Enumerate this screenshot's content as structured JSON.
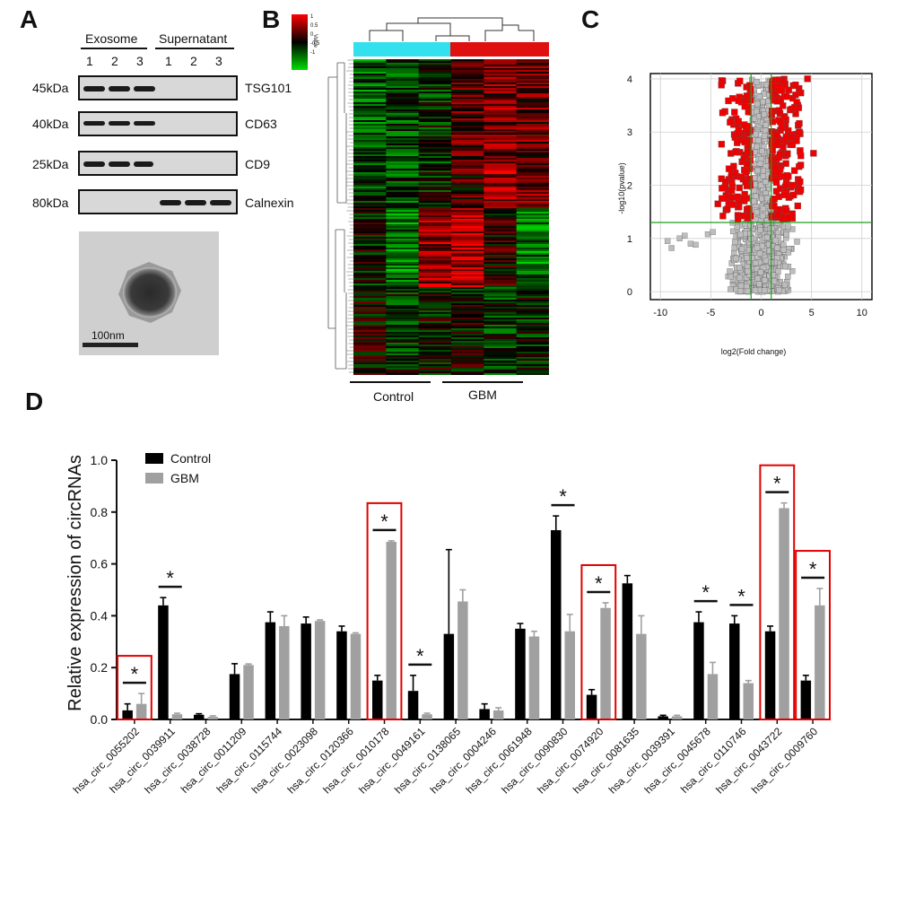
{
  "panels": {
    "a": "A",
    "b": "B",
    "c": "C",
    "d": "D"
  },
  "panel_a": {
    "groups": [
      "Exosome",
      "Supernatant"
    ],
    "lanes": [
      "1",
      "2",
      "3",
      "1",
      "2",
      "3"
    ],
    "blots": [
      {
        "mw": "45kDa",
        "protein": "TSG101",
        "bands": [
          1,
          1,
          1,
          0,
          0,
          0
        ]
      },
      {
        "mw": "40kDa",
        "protein": "CD63",
        "bands": [
          1,
          1,
          1,
          0,
          0,
          0
        ]
      },
      {
        "mw": "25kDa",
        "protein": "CD9",
        "bands": [
          1,
          1,
          1,
          0,
          0,
          0
        ]
      },
      {
        "mw": "80kDa",
        "protein": "Calnexin",
        "bands": [
          0,
          0,
          0,
          1,
          1,
          1
        ]
      }
    ],
    "scale_bar": "100nm"
  },
  "panel_b": {
    "legend_title": "Value",
    "legend_ticks": [
      "1",
      "0.5",
      "0",
      "-0.5",
      "-1"
    ],
    "groups": [
      "Control",
      "GBM"
    ],
    "colors": {
      "control": "#33e0ee",
      "gbm": "#e01010",
      "high": "#ff0000",
      "low": "#00dd00",
      "mid": "#000000"
    }
  },
  "panel_c": {
    "ylabel": "-log10(pvalue)",
    "xlabel": "log2(Fold change)",
    "xticks": [
      "-10",
      "-5",
      "0",
      "5",
      "10"
    ],
    "yticks": [
      "0",
      "1",
      "2",
      "3",
      "4"
    ]
  },
  "chart_data": {
    "type": "bar",
    "ylabel": "Relative expression of circRNAs",
    "ylim": [
      0,
      1.0
    ],
    "yticks": [
      "0.0",
      "0.2",
      "0.4",
      "0.6",
      "0.8",
      "1.0"
    ],
    "categories": [
      "hsa_circ_0055202",
      "hsa_circ_0039911",
      "hsa_circ_0038728",
      "hsa_circ_0011209",
      "hsa_circ_0115744",
      "hsa_circ_0023098",
      "hsa_circ_0120366",
      "hsa_circ_0010178",
      "hsa_circ_0049161",
      "hsa_circ_0138065",
      "hsa_circ_0004246",
      "hsa_circ_0061948",
      "hsa_circ_0090830",
      "hsa_circ_0074920",
      "hsa_circ_0081635",
      "hsa_circ_0039391",
      "hsa_circ_0045678",
      "hsa_circ_0110746",
      "hsa_circ_0043722",
      "hsa_circ_0009760"
    ],
    "series": [
      {
        "name": "Control",
        "color": "#000000",
        "values": [
          0.035,
          0.44,
          0.018,
          0.175,
          0.375,
          0.37,
          0.34,
          0.15,
          0.11,
          0.33,
          0.04,
          0.35,
          0.73,
          0.095,
          0.525,
          0.012,
          0.375,
          0.37,
          0.34,
          0.15
        ],
        "errors": [
          0.025,
          0.03,
          0.004,
          0.04,
          0.04,
          0.025,
          0.02,
          0.02,
          0.06,
          0.325,
          0.02,
          0.02,
          0.055,
          0.02,
          0.03,
          0.004,
          0.04,
          0.03,
          0.02,
          0.02
        ]
      },
      {
        "name": "GBM",
        "color": "#a0a0a0",
        "values": [
          0.06,
          0.02,
          0.01,
          0.21,
          0.36,
          0.38,
          0.33,
          0.685,
          0.02,
          0.455,
          0.035,
          0.32,
          0.34,
          0.43,
          0.33,
          0.012,
          0.175,
          0.14,
          0.815,
          0.44
        ],
        "errors": [
          0.04,
          0.004,
          0.004,
          0.004,
          0.04,
          0.004,
          0.004,
          0.004,
          0.004,
          0.045,
          0.01,
          0.02,
          0.065,
          0.02,
          0.07,
          0.004,
          0.045,
          0.01,
          0.02,
          0.065
        ]
      }
    ],
    "significance": {
      "marker": "*",
      "indices": [
        0,
        1,
        7,
        8,
        12,
        13,
        16,
        17,
        18,
        19
      ]
    },
    "highlighted": [
      0,
      7,
      13,
      18,
      19
    ],
    "highlight_color": "#e00000"
  }
}
